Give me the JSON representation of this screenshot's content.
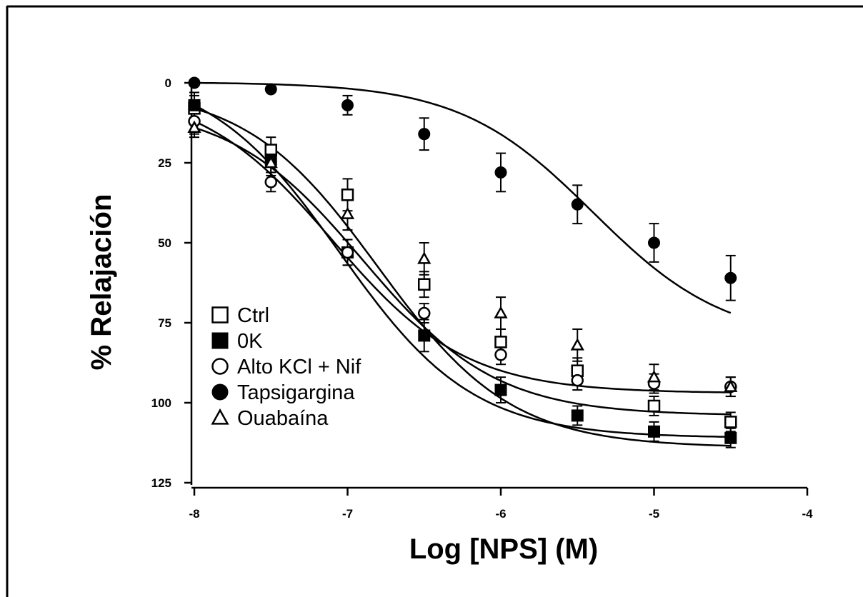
{
  "chart_data": {
    "type": "scatter",
    "xlabel": "Log [NPS] (M)",
    "ylabel": "% Relajación",
    "xlim": [
      -8,
      -4
    ],
    "ylim": [
      125,
      0
    ],
    "y_inverted": true,
    "xticks": [
      -8,
      -7,
      -6,
      -5,
      -4
    ],
    "yticks": [
      0,
      25,
      50,
      75,
      100,
      125
    ],
    "grid": false,
    "legend_placement": "bottom-left",
    "x": [
      -8,
      -7.5,
      -7,
      -6.5,
      -6,
      -5.5,
      -5,
      -4.5
    ],
    "series": [
      {
        "name": "Ctrl",
        "marker": "square-open",
        "values": [
          8,
          21,
          35,
          63,
          81,
          90,
          101,
          106
        ],
        "errors": [
          4,
          4,
          5,
          4,
          4,
          4,
          3,
          3
        ],
        "fit": [
          -6.8,
          114
        ]
      },
      {
        "name": "0K",
        "marker": "square-filled",
        "values": [
          7,
          24,
          53,
          79,
          96,
          104,
          109,
          111
        ],
        "errors": [
          4,
          4,
          4,
          5,
          4,
          3,
          3,
          3
        ],
        "fit": [
          -7.05,
          111
        ]
      },
      {
        "name": "Alto KCl + Nif",
        "marker": "circle-open",
        "values": [
          12,
          31,
          53,
          72,
          85,
          93,
          94,
          95
        ],
        "errors": [
          4,
          3,
          4,
          3,
          3,
          3,
          3,
          3
        ],
        "fit": [
          -7.1,
          97
        ]
      },
      {
        "name": "Tapsigargina",
        "marker": "circle-filled",
        "values": [
          0,
          2,
          7,
          16,
          28,
          38,
          50,
          61
        ],
        "errors": [
          1,
          1,
          3,
          5,
          6,
          6,
          6,
          7
        ],
        "fit": [
          -5.4,
          81
        ]
      },
      {
        "name": "Ouabaína",
        "marker": "triangle-open",
        "values": [
          14,
          25,
          41,
          55,
          72,
          82,
          92,
          95
        ],
        "errors": [
          3,
          4,
          5,
          5,
          5,
          5,
          4,
          3
        ],
        "fit": [
          -6.9,
          104
        ]
      }
    ]
  }
}
